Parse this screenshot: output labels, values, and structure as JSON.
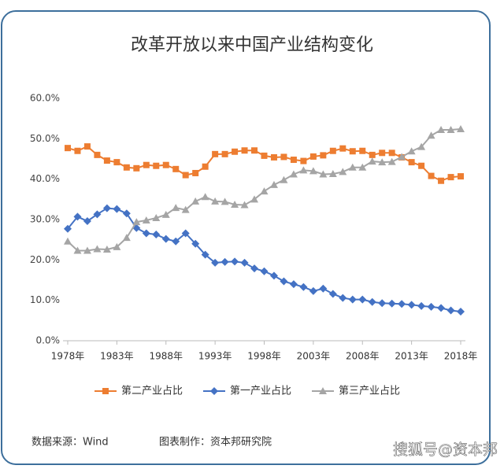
{
  "chart_data": {
    "type": "line",
    "title": "改革开放以来中国产业结构变化",
    "categories": [
      "1978年",
      null,
      null,
      null,
      null,
      "1983年",
      null,
      null,
      null,
      null,
      "1988年",
      null,
      null,
      null,
      null,
      "1993年",
      null,
      null,
      null,
      null,
      "1998年",
      null,
      null,
      null,
      null,
      "2003年",
      null,
      null,
      null,
      null,
      "2008年",
      null,
      null,
      null,
      null,
      "2013年",
      null,
      null,
      null,
      null,
      "2018年"
    ],
    "ylim": [
      0,
      60
    ],
    "yticks": [
      {
        "value": 0,
        "label": "0.0%"
      },
      {
        "value": 10,
        "label": "10.0%"
      },
      {
        "value": 20,
        "label": "20.0%"
      },
      {
        "value": 30,
        "label": "30.0%"
      },
      {
        "value": 40,
        "label": "40.0%"
      },
      {
        "value": 50,
        "label": "50.0%"
      },
      {
        "value": 60,
        "label": "60.0%"
      }
    ],
    "grid": false,
    "legend": "bottom",
    "series": [
      {
        "name": "第二产业占比",
        "color": "#ed7d31",
        "marker": "square",
        "values": [
          47.7,
          47.0,
          48.1,
          46.0,
          44.6,
          44.2,
          42.9,
          42.7,
          43.5,
          43.3,
          43.5,
          42.5,
          41.0,
          41.5,
          43.1,
          46.2,
          46.2,
          46.8,
          47.1,
          47.1,
          45.8,
          45.4,
          45.5,
          44.8,
          44.5,
          45.6,
          45.9,
          47.0,
          47.6,
          46.9,
          47.0,
          46.0,
          46.5,
          46.5,
          45.4,
          44.2,
          43.3,
          40.8,
          39.6,
          40.5,
          40.7
        ]
      },
      {
        "name": "第一产业占比",
        "color": "#4472c4",
        "marker": "diamond",
        "values": [
          27.7,
          30.7,
          29.6,
          31.3,
          32.8,
          32.6,
          31.5,
          27.9,
          26.6,
          26.3,
          25.2,
          24.6,
          26.6,
          24.0,
          21.3,
          19.3,
          19.5,
          19.6,
          19.3,
          17.9,
          17.2,
          16.1,
          14.7,
          14.0,
          13.3,
          12.3,
          12.9,
          11.6,
          10.6,
          10.2,
          10.2,
          9.6,
          9.3,
          9.2,
          9.1,
          8.9,
          8.6,
          8.4,
          8.1,
          7.5,
          7.2
        ]
      },
      {
        "name": "第三产业占比",
        "color": "#a5a5a5",
        "marker": "triangle",
        "values": [
          24.6,
          22.3,
          22.3,
          22.7,
          22.6,
          23.2,
          25.5,
          29.4,
          29.8,
          30.4,
          31.2,
          32.9,
          32.4,
          34.5,
          35.6,
          34.5,
          34.4,
          33.7,
          33.6,
          35.0,
          37.0,
          38.6,
          39.8,
          41.2,
          42.2,
          42.0,
          41.2,
          41.3,
          41.8,
          42.9,
          42.9,
          44.4,
          44.2,
          44.3,
          45.5,
          46.9,
          48.0,
          50.8,
          52.2,
          52.2,
          52.4
        ]
      }
    ],
    "source": "数据来源：Wind",
    "credit": "图表制作：资本邦研究院",
    "watermark": "搜狐号@资本邦"
  }
}
